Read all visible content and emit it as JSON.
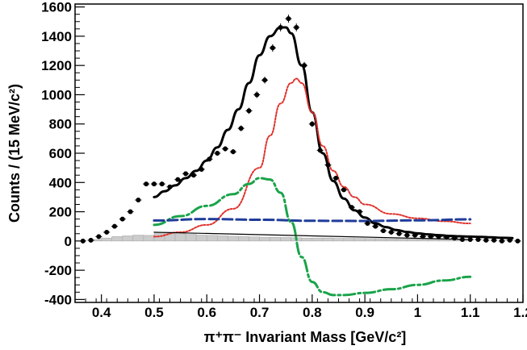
{
  "chart_data": {
    "type": "scatter",
    "title": "",
    "xlabel": "π⁺π⁻ Invariant Mass [GeV/c²]",
    "ylabel": "Counts / (15 MeV/c²)",
    "xlim": [
      0.35,
      1.2
    ],
    "ylim": [
      -420,
      1620
    ],
    "xticks": [
      "0.4",
      "0.5",
      "0.6",
      "0.7",
      "0.8",
      "0.9",
      "1",
      "1.1",
      "1.2"
    ],
    "yticks": [
      "-400",
      "-200",
      "0",
      "200",
      "400",
      "600",
      "800",
      "1000",
      "1200",
      "1400",
      "1600"
    ],
    "colors": {
      "data": "#000000",
      "total_fit": "#000000",
      "rho_peak": "#e0302a",
      "interference": "#1aa34a",
      "flat_background": "#1f3c99",
      "linear_background": "#000000",
      "background_histogram": "#cccccc"
    },
    "data_points": {
      "x": [
        0.365,
        0.38,
        0.395,
        0.41,
        0.425,
        0.44,
        0.455,
        0.47,
        0.485,
        0.5,
        0.515,
        0.53,
        0.545,
        0.56,
        0.575,
        0.59,
        0.605,
        0.62,
        0.635,
        0.65,
        0.665,
        0.68,
        0.695,
        0.71,
        0.725,
        0.74,
        0.755,
        0.77,
        0.785,
        0.8,
        0.815,
        0.83,
        0.845,
        0.86,
        0.875,
        0.89,
        0.905,
        0.92,
        0.935,
        0.95,
        0.965,
        0.98,
        0.995,
        1.01,
        1.025,
        1.04,
        1.055,
        1.07,
        1.085,
        1.1,
        1.115,
        1.13,
        1.145,
        1.16,
        1.175,
        1.19
      ],
      "y": [
        0,
        5,
        30,
        60,
        100,
        150,
        200,
        280,
        390,
        390,
        390,
        370,
        420,
        460,
        450,
        490,
        560,
        600,
        630,
        610,
        770,
        890,
        1000,
        1100,
        1320,
        1460,
        1520,
        1460,
        1200,
        800,
        620,
        520,
        430,
        350,
        230,
        200,
        120,
        100,
        70,
        60,
        50,
        40,
        40,
        30,
        30,
        30,
        25,
        20,
        10,
        10,
        10,
        5,
        5,
        0,
        5,
        0
      ]
    },
    "series": [
      {
        "x": [
          0.5,
          0.52,
          0.54,
          0.56,
          0.58,
          0.6,
          0.62,
          0.64,
          0.66,
          0.68,
          0.7,
          0.72,
          0.74,
          0.75,
          0.76,
          0.78,
          0.8,
          0.82,
          0.84,
          0.86,
          0.88,
          0.9,
          0.92,
          0.94,
          0.96,
          0.98,
          1.0,
          1.02,
          1.04,
          1.06,
          1.08,
          1.1,
          1.12,
          1.14,
          1.16,
          1.18
        ],
        "y": [
          300,
          340,
          380,
          430,
          480,
          550,
          640,
          760,
          900,
          1080,
          1270,
          1400,
          1460,
          1460,
          1420,
          1200,
          880,
          600,
          410,
          290,
          210,
          160,
          120,
          95,
          75,
          62,
          52,
          45,
          40,
          35,
          32,
          30,
          28,
          25,
          22,
          20
        ]
      },
      {
        "x": [
          0.5,
          0.55,
          0.6,
          0.65,
          0.7,
          0.72,
          0.74,
          0.76,
          0.77,
          0.78,
          0.8,
          0.82,
          0.84,
          0.86,
          0.88,
          0.9,
          0.95,
          1.0,
          1.05,
          1.1
        ],
        "y": [
          30,
          60,
          110,
          220,
          500,
          720,
          940,
          1080,
          1110,
          1080,
          880,
          650,
          480,
          370,
          300,
          250,
          185,
          155,
          135,
          120
        ]
      },
      {
        "x": [
          0.5,
          0.55,
          0.6,
          0.65,
          0.68,
          0.7,
          0.72,
          0.74,
          0.76,
          0.78,
          0.8,
          0.82,
          0.84,
          0.86,
          0.9,
          0.95,
          1.0,
          1.05,
          1.1
        ],
        "y": [
          110,
          170,
          240,
          320,
          390,
          430,
          420,
          330,
          130,
          -110,
          -280,
          -350,
          -370,
          -370,
          -355,
          -330,
          -300,
          -270,
          -245
        ]
      },
      {
        "x": [
          0.5,
          0.6,
          0.7,
          0.8,
          0.9,
          1.0,
          1.1
        ],
        "y": [
          140,
          150,
          145,
          138,
          137,
          141,
          148
        ]
      },
      {
        "x": [
          0.5,
          1.1
        ],
        "y": [
          60,
          10
        ]
      }
    ],
    "histogram": {
      "x": [
        0.38,
        0.4,
        0.42,
        0.44,
        0.46,
        0.48,
        0.5,
        0.52,
        0.54,
        0.56,
        0.58,
        0.6,
        0.62,
        0.64,
        0.66,
        0.68,
        0.7,
        0.72,
        0.74,
        0.76,
        0.78,
        0.8,
        0.82,
        0.84,
        0.86,
        0.88,
        0.9,
        0.92,
        0.94,
        0.96,
        0.98,
        1.0,
        1.02,
        1.04,
        1.06,
        1.08
      ],
      "y": [
        10,
        20,
        30,
        35,
        40,
        38,
        55,
        60,
        50,
        45,
        40,
        38,
        35,
        33,
        30,
        28,
        26,
        25,
        24,
        22,
        20,
        20,
        20,
        18,
        18,
        17,
        16,
        16,
        15,
        15,
        14,
        14,
        13,
        13,
        12,
        12
      ]
    }
  }
}
